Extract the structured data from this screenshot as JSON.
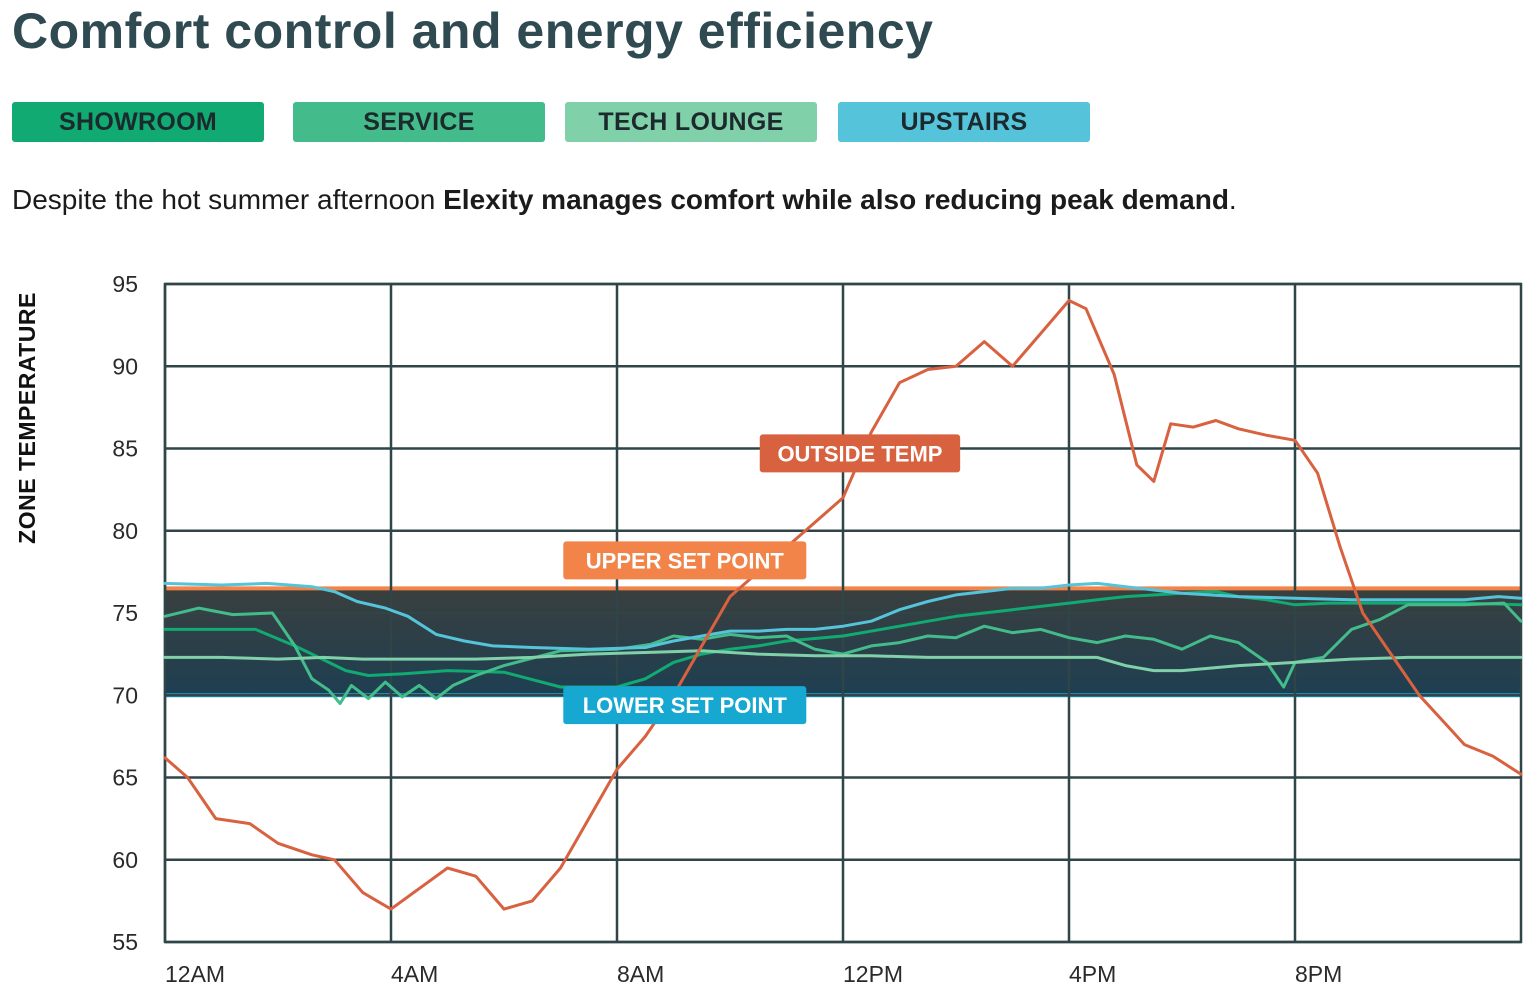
{
  "page": {
    "title": "Comfort control and energy efficiency",
    "subtitle_lead": "Despite the hot summer afternoon ",
    "subtitle_bold": "Elexity manages comfort while also reducing peak demand",
    "subtitle_end": "."
  },
  "zones": [
    {
      "label": "SHOWROOM",
      "color": "#10aa72"
    },
    {
      "label": "SERVICE",
      "color": "#43bb8a"
    },
    {
      "label": "TECH LOUNGE",
      "color": "#80d0aa"
    },
    {
      "label": "UPSTAIRS",
      "color": "#55c4da"
    }
  ],
  "chart_data": {
    "type": "line",
    "title": "Comfort control and energy efficiency",
    "ylabel": "ZONE TEMPERATURE",
    "xlabel": "",
    "ylim": [
      55,
      95
    ],
    "xlim": [
      0,
      24
    ],
    "yticks": [
      95,
      90,
      85,
      80,
      75,
      70,
      65,
      60,
      55
    ],
    "xtick_positions": [
      0,
      4,
      8,
      12,
      16,
      20
    ],
    "xtick_labels": [
      "12AM",
      "4AM",
      "8AM",
      "12PM",
      "4PM",
      "8PM"
    ],
    "grid": true,
    "band": {
      "upper": 76.5,
      "lower": 70,
      "upper_label": "UPPER SET POINT",
      "lower_label": "LOWER SET POINT",
      "upper_color": "#f2844a",
      "lower_color": "#17a8d2",
      "fill_top": "#3a3f3e",
      "fill_bottom": "#1e3f52"
    },
    "series": [
      {
        "name": "OUTSIDE TEMP",
        "color": "#d8613f",
        "width": 3,
        "x": [
          0,
          0.4,
          0.9,
          1.5,
          2.0,
          2.6,
          3.0,
          3.5,
          4.0,
          4.6,
          5.0,
          5.5,
          6.0,
          6.5,
          7.0,
          7.5,
          8.0,
          8.5,
          9.0,
          9.5,
          10.0,
          10.5,
          11.0,
          11.5,
          12.0,
          12.5,
          13.0,
          13.5,
          14.0,
          14.5,
          15.0,
          15.5,
          16.0,
          16.3,
          16.8,
          17.2,
          17.5,
          17.8,
          18.2,
          18.6,
          19.0,
          19.5,
          20.0,
          20.4,
          20.8,
          21.2,
          21.7,
          22.2,
          22.6,
          23.0,
          23.5,
          24.0
        ],
        "y": [
          66.2,
          65.0,
          62.5,
          62.2,
          61.0,
          60.3,
          60.0,
          58.0,
          57.0,
          58.5,
          59.5,
          59.0,
          57.0,
          57.5,
          59.5,
          62.5,
          65.5,
          67.5,
          70.0,
          73.0,
          76.0,
          77.5,
          79.0,
          80.5,
          82.0,
          86.0,
          89.0,
          89.8,
          90.0,
          91.5,
          90.0,
          92.0,
          94.0,
          93.5,
          89.5,
          84.0,
          83.0,
          86.5,
          86.3,
          86.7,
          86.2,
          85.8,
          85.5,
          83.5,
          79.0,
          75.0,
          72.5,
          70.0,
          68.5,
          67.0,
          66.3,
          65.2
        ]
      },
      {
        "name": "SHOWROOM",
        "color": "#10aa72",
        "width": 3,
        "x": [
          0,
          0.8,
          1.6,
          2.3,
          2.9,
          3.2,
          3.6,
          4.2,
          5.0,
          6.0,
          7.0,
          8.0,
          8.5,
          9.0,
          9.5,
          10.0,
          10.5,
          11.0,
          12.0,
          13.0,
          14.0,
          15.0,
          16.0,
          16.5,
          17.0,
          18.0,
          18.6,
          19.0,
          19.5,
          20.0,
          20.6,
          21.0,
          22.0,
          23.0,
          24.0
        ],
        "y": [
          74.0,
          74.0,
          74.0,
          73.0,
          72.0,
          71.5,
          71.2,
          71.3,
          71.5,
          71.4,
          70.5,
          70.5,
          71.0,
          72.0,
          72.5,
          72.8,
          73.0,
          73.3,
          73.6,
          74.2,
          74.8,
          75.2,
          75.6,
          75.8,
          76.0,
          76.2,
          76.3,
          76.0,
          75.8,
          75.5,
          75.6,
          75.6,
          75.6,
          75.6,
          75.5
        ]
      },
      {
        "name": "SERVICE",
        "color": "#43bb8a",
        "width": 3,
        "x": [
          0,
          0.6,
          1.2,
          1.9,
          2.3,
          2.6,
          2.9,
          3.1,
          3.3,
          3.6,
          3.9,
          4.2,
          4.5,
          4.8,
          5.1,
          5.5,
          6.0,
          7.0,
          8.0,
          8.6,
          9.0,
          9.5,
          10.0,
          10.5,
          11.0,
          11.5,
          12.0,
          12.5,
          13.0,
          13.5,
          14.0,
          14.5,
          15.0,
          15.5,
          16.0,
          16.5,
          17.0,
          17.5,
          18.0,
          18.5,
          19.0,
          19.5,
          19.8,
          20.0,
          20.5,
          21.0,
          21.5,
          22.0,
          23.0,
          23.7,
          24.0
        ],
        "y": [
          74.8,
          75.3,
          74.9,
          75.0,
          73.0,
          71.0,
          70.3,
          69.5,
          70.6,
          69.8,
          70.8,
          69.9,
          70.6,
          69.8,
          70.6,
          71.2,
          71.8,
          72.7,
          72.8,
          73.1,
          73.6,
          73.4,
          73.7,
          73.5,
          73.6,
          72.8,
          72.5,
          73.0,
          73.2,
          73.6,
          73.5,
          74.2,
          73.8,
          74.0,
          73.5,
          73.2,
          73.6,
          73.4,
          72.8,
          73.6,
          73.2,
          72.0,
          70.5,
          72.0,
          72.3,
          74.0,
          74.6,
          75.5,
          75.5,
          75.6,
          74.5
        ]
      },
      {
        "name": "TECH LOUNGE",
        "color": "#80d0aa",
        "width": 3,
        "x": [
          0,
          1.0,
          2.0,
          2.8,
          3.5,
          4.5,
          5.5,
          6.5,
          7.5,
          8.5,
          9.5,
          10.5,
          11.5,
          12.5,
          13.5,
          14.5,
          15.5,
          16.5,
          17.0,
          17.5,
          18.0,
          19.0,
          20.0,
          21.0,
          22.0,
          23.0,
          24.0
        ],
        "y": [
          72.3,
          72.3,
          72.2,
          72.3,
          72.2,
          72.2,
          72.2,
          72.3,
          72.5,
          72.6,
          72.7,
          72.5,
          72.4,
          72.4,
          72.3,
          72.3,
          72.3,
          72.3,
          71.8,
          71.5,
          71.5,
          71.8,
          72.0,
          72.2,
          72.3,
          72.3,
          72.3
        ]
      },
      {
        "name": "UPSTAIRS",
        "color": "#55c4da",
        "width": 3,
        "x": [
          0,
          1.0,
          1.8,
          2.2,
          2.6,
          3.0,
          3.4,
          3.9,
          4.3,
          4.8,
          5.3,
          5.8,
          6.5,
          7.5,
          8.5,
          9.0,
          9.5,
          10.0,
          10.5,
          11.0,
          11.5,
          12.0,
          12.5,
          13.0,
          13.5,
          14.0,
          14.5,
          15.0,
          15.5,
          16.0,
          16.5,
          17.0,
          17.5,
          18.0,
          19.0,
          20.0,
          21.0,
          22.0,
          23.0,
          23.6,
          24.0
        ],
        "y": [
          76.8,
          76.7,
          76.8,
          76.7,
          76.6,
          76.3,
          75.7,
          75.3,
          74.8,
          73.7,
          73.3,
          73.0,
          72.9,
          72.8,
          72.9,
          73.3,
          73.6,
          73.9,
          73.9,
          74.0,
          74.0,
          74.2,
          74.5,
          75.2,
          75.7,
          76.1,
          76.3,
          76.5,
          76.5,
          76.7,
          76.8,
          76.6,
          76.4,
          76.2,
          76.0,
          75.9,
          75.8,
          75.8,
          75.8,
          76.0,
          75.9
        ]
      }
    ],
    "annotations": [
      {
        "text": "OUTSIDE TEMP",
        "color": "#d8613f",
        "x": 12.3,
        "y": 84.7
      },
      {
        "text": "UPPER SET POINT",
        "color": "#f2844a",
        "x": 9.2,
        "y": 78.2
      },
      {
        "text": "LOWER SET POINT",
        "color": "#17a8d2",
        "x": 9.2,
        "y": 69.4
      }
    ]
  }
}
